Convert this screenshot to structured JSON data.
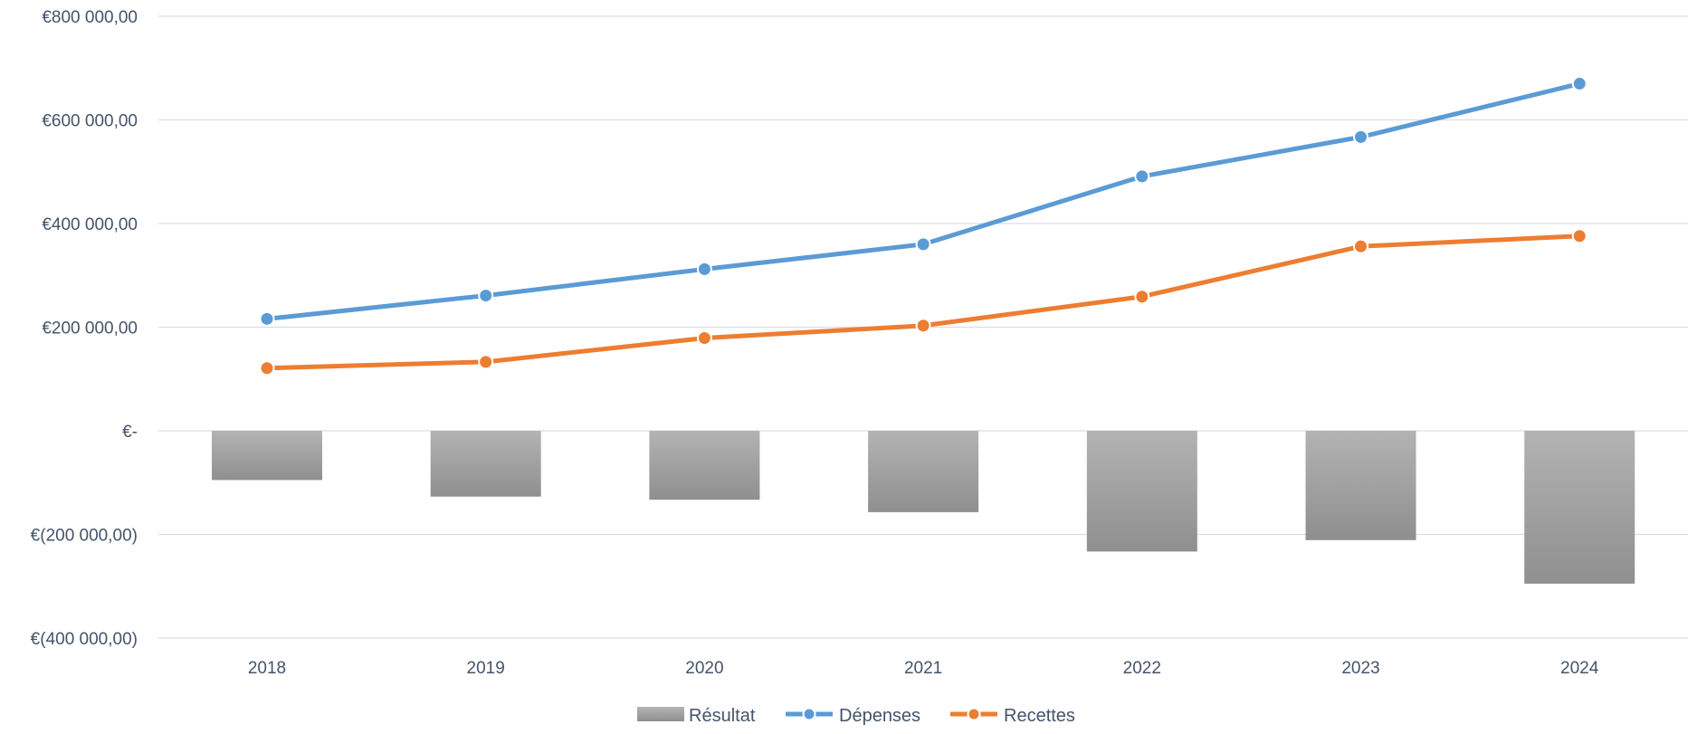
{
  "chart_data": {
    "type": "bar",
    "categories": [
      "2018",
      "2019",
      "2020",
      "2021",
      "2022",
      "2023",
      "2024"
    ],
    "series": [
      {
        "name": "Résultat",
        "type": "bar",
        "color": "#a5a5a5",
        "values": [
          -95000,
          -127000,
          -133000,
          -157000,
          -233000,
          -211000,
          -295000
        ]
      },
      {
        "name": "Dépenses",
        "type": "line",
        "color": "#5b9bd5",
        "values": [
          216000,
          261000,
          312000,
          360000,
          491000,
          567000,
          670000
        ]
      },
      {
        "name": "Recettes",
        "type": "line",
        "color": "#ed7d31",
        "values": [
          121000,
          133000,
          179000,
          203000,
          259000,
          356000,
          376000
        ]
      }
    ],
    "yticks": [
      800000,
      600000,
      400000,
      200000,
      0,
      -200000,
      -400000
    ],
    "ytick_labels": [
      "€800 000,00",
      "€600 000,00",
      "€400 000,00",
      "€200 000,00",
      "€-",
      "€(200 000,00)",
      "€(400 000,00)"
    ],
    "ylim": [
      -400000,
      800000
    ],
    "grid": true,
    "legend_position": "bottom",
    "title": "",
    "xlabel": "",
    "ylabel": ""
  }
}
